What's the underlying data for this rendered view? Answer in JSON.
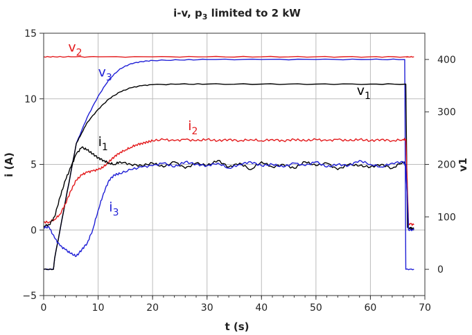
{
  "chart_data": {
    "type": "line",
    "title": "i-v, p",
    "title_sub": "3",
    "title_rest": " limited to 2 kW",
    "xlabel": "t (s)",
    "ylabel_left": "i (A)",
    "ylabel_right": "v1",
    "xlim": [
      0,
      70
    ],
    "ylim_left": [
      -5,
      15
    ],
    "ylim_right": [
      -50,
      450
    ],
    "x_ticks": [
      "0",
      "10",
      "20",
      "30",
      "40",
      "50",
      "60",
      "70"
    ],
    "y_left_ticks": [
      "−5",
      "0",
      "5",
      "10",
      "15"
    ],
    "y_right_ticks": [
      "0",
      "100",
      "200",
      "300",
      "400"
    ],
    "grid": true,
    "series": [
      {
        "name": "v",
        "sub": "2",
        "axis": "right",
        "color": "#e31a1c",
        "x": [
          0,
          2,
          5,
          10,
          20,
          30,
          40,
          50,
          60,
          66.5,
          67,
          68
        ],
        "y": [
          405,
          405,
          405,
          405,
          405,
          405,
          405,
          405,
          405,
          405,
          405,
          405
        ]
      },
      {
        "name": "v",
        "sub": "3",
        "axis": "right",
        "color": "#1f1fd6",
        "x": [
          0,
          1.8,
          2,
          4,
          6,
          8,
          10,
          12,
          14,
          16,
          18,
          20,
          25,
          30,
          40,
          50,
          60,
          66.3,
          66.5,
          68
        ],
        "y": [
          0,
          0,
          20,
          130,
          240,
          290,
          330,
          362,
          382,
          392,
          396,
          398,
          399,
          400,
          400,
          400,
          400,
          400,
          0,
          0
        ]
      },
      {
        "name": "v",
        "sub": "1",
        "axis": "right",
        "color": "#000000",
        "x": [
          0,
          1.8,
          2,
          4,
          6,
          7,
          8,
          10,
          12,
          14,
          16,
          18,
          20,
          25,
          30,
          40,
          50,
          60,
          66.5,
          66.8,
          68
        ],
        "y": [
          0,
          0,
          20,
          130,
          240,
          260,
          280,
          305,
          325,
          338,
          346,
          350,
          352,
          353,
          353,
          353,
          353,
          353,
          353,
          80,
          75
        ]
      },
      {
        "name": "i",
        "sub": "2",
        "axis": "left",
        "color": "#e31a1c",
        "x": [
          0,
          1,
          2,
          3,
          4,
          5,
          6,
          7,
          8,
          9,
          10,
          11,
          12,
          13,
          14,
          15,
          16,
          17,
          18,
          19,
          20,
          22,
          24,
          26,
          28,
          30,
          32,
          34,
          36,
          38,
          40,
          42,
          44,
          46,
          48,
          50,
          52,
          54,
          56,
          58,
          60,
          62,
          64,
          66,
          66.5,
          67,
          68
        ],
        "y": [
          0.6,
          0.6,
          0.8,
          1.2,
          2.0,
          3.0,
          3.8,
          4.2,
          4.4,
          4.5,
          4.6,
          4.8,
          5.2,
          5.6,
          5.9,
          6.1,
          6.3,
          6.5,
          6.6,
          6.7,
          6.8,
          6.9,
          6.8,
          6.9,
          6.8,
          6.9,
          6.8,
          6.9,
          6.8,
          6.9,
          6.8,
          6.9,
          6.8,
          6.9,
          6.8,
          6.9,
          6.8,
          6.9,
          6.8,
          6.9,
          6.8,
          6.9,
          6.8,
          6.9,
          6.9,
          0.5,
          0.4
        ]
      },
      {
        "name": "i",
        "sub": "1",
        "axis": "left",
        "color": "#000000",
        "x": [
          0,
          1,
          2,
          3,
          4,
          5,
          6,
          7,
          8,
          9,
          10,
          11,
          12,
          13,
          14,
          16,
          18,
          20,
          22,
          24,
          26,
          28,
          30,
          32,
          34,
          36,
          38,
          40,
          42,
          44,
          46,
          48,
          50,
          52,
          54,
          56,
          58,
          60,
          62,
          64,
          66,
          66.5,
          67,
          68
        ],
        "y": [
          0.3,
          0.4,
          1.0,
          2.5,
          3.8,
          4.8,
          5.8,
          6.3,
          6.1,
          5.8,
          5.5,
          5.3,
          5.1,
          5.0,
          5.2,
          5.0,
          4.9,
          5.1,
          4.8,
          5.2,
          4.7,
          5.1,
          4.9,
          5.3,
          4.8,
          5.1,
          4.6,
          5.2,
          4.8,
          5.0,
          4.7,
          5.2,
          4.9,
          5.1,
          4.6,
          5.0,
          4.9,
          4.8,
          5.0,
          4.7,
          5.2,
          5.0,
          0.2,
          0.1
        ]
      },
      {
        "name": "i",
        "sub": "3",
        "axis": "left",
        "color": "#1f1fd6",
        "x": [
          0,
          1,
          2,
          3,
          4,
          5,
          6,
          7,
          8,
          9,
          10,
          11,
          12,
          13,
          14,
          16,
          18,
          20,
          22,
          24,
          26,
          28,
          30,
          32,
          34,
          36,
          38,
          40,
          42,
          44,
          46,
          48,
          50,
          52,
          54,
          56,
          58,
          60,
          62,
          64,
          66,
          66.5,
          67,
          68
        ],
        "y": [
          0.2,
          0.2,
          -0.6,
          -1.2,
          -1.5,
          -1.8,
          -2.0,
          -1.5,
          -1.0,
          0.0,
          1.5,
          2.8,
          3.8,
          4.2,
          4.3,
          4.6,
          4.8,
          4.9,
          5.1,
          4.8,
          5.2,
          5.0,
          4.9,
          5.1,
          4.7,
          5.0,
          5.2,
          4.9,
          5.0,
          4.8,
          5.1,
          4.9,
          5.2,
          4.8,
          5.0,
          4.9,
          5.3,
          5.0,
          4.8,
          5.1,
          5.2,
          4.9,
          0.0,
          0.0
        ]
      }
    ],
    "labels": [
      {
        "text": "v",
        "sub": "2",
        "color": "#e31a1c",
        "x": 4.5,
        "y_left": 13.6
      },
      {
        "text": "v",
        "sub": "3",
        "color": "#1f1fd6",
        "x": 10,
        "y_left": 11.7
      },
      {
        "text": "v",
        "sub": "1",
        "color": "#000000",
        "x": 57.5,
        "y_left": 10.3
      },
      {
        "text": "i",
        "sub": "2",
        "color": "#e31a1c",
        "x": 26.5,
        "y_left": 7.6
      },
      {
        "text": "i",
        "sub": "1",
        "color": "#000000",
        "x": 10,
        "y_left": 6.4
      },
      {
        "text": "i",
        "sub": "3",
        "color": "#1f1fd6",
        "x": 12,
        "y_left": 1.4
      }
    ]
  }
}
